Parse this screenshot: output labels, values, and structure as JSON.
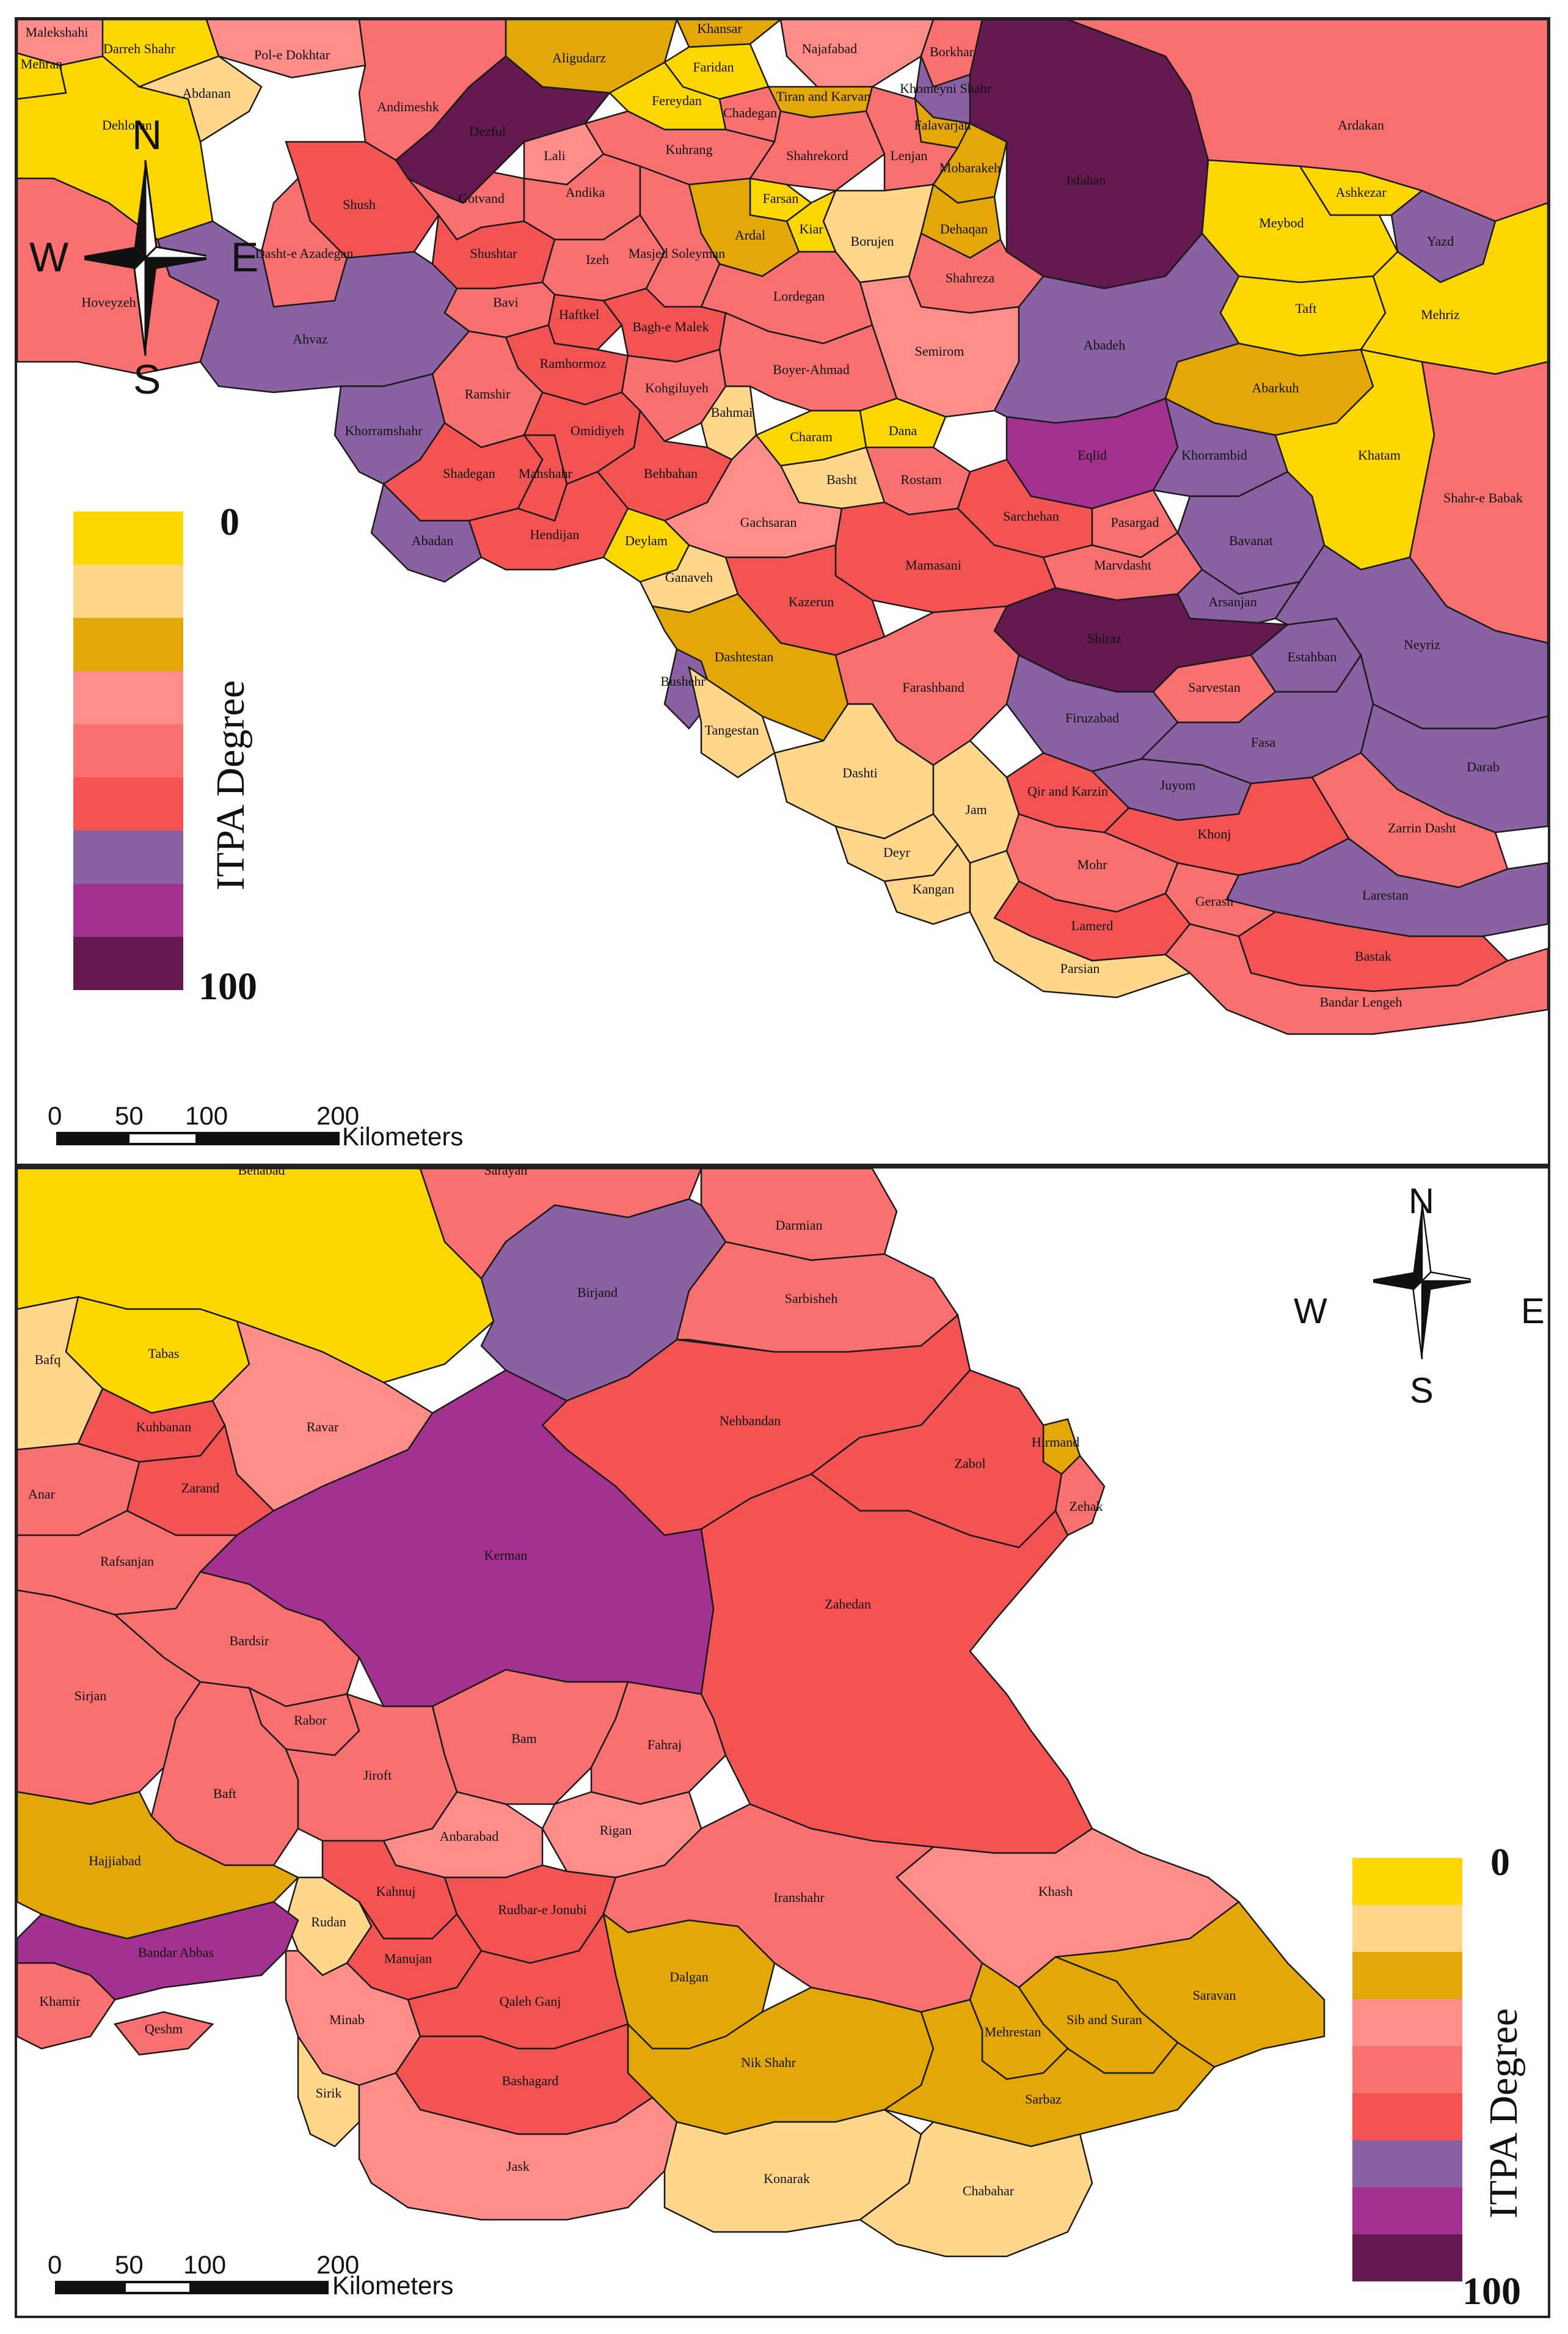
{
  "colors": {
    "c0": "#FFD700",
    "c1": "#FFD68A",
    "c2": "#E3A808",
    "c3": "#FF8D8A",
    "c4": "#F97070",
    "c5": "#F45354",
    "c6": "#8A62A3",
    "c7": "#A3318F",
    "c8": "#64194F"
  },
  "legend": {
    "title": "ITPA Degree",
    "min": "0",
    "max": "100",
    "classes": [
      "c0",
      "c1",
      "c2",
      "c3",
      "c4",
      "c5",
      "c6",
      "c7",
      "c8"
    ]
  },
  "compass": {
    "n": "N",
    "s": "S",
    "e": "E",
    "w": "W"
  },
  "scale": {
    "ticks": [
      "0",
      "50",
      "100",
      "200"
    ],
    "unit": "Kilometers"
  },
  "map_top": {
    "districts": [
      {
        "name": "Malekshahi",
        "c": "c3"
      },
      {
        "name": "Mehran",
        "c": "c0"
      },
      {
        "name": "Darreh Shahr",
        "c": "c0"
      },
      {
        "name": "Pol-e Dokhtar",
        "c": "c3"
      },
      {
        "name": "Dehloran",
        "c": "c0"
      },
      {
        "name": "Abdanan",
        "c": "c1"
      },
      {
        "name": "Aligudarz",
        "c": "c2"
      },
      {
        "name": "Khansar",
        "c": "c2"
      },
      {
        "name": "Faridan",
        "c": "c0"
      },
      {
        "name": "Najafabad",
        "c": "c3"
      },
      {
        "name": "Borkhar",
        "c": "c4"
      },
      {
        "name": "Fereydan",
        "c": "c0"
      },
      {
        "name": "Tiran and Karvan",
        "c": "c2"
      },
      {
        "name": "Chadegan",
        "c": "c4"
      },
      {
        "name": "Khomeyni Shahr",
        "c": "c6"
      },
      {
        "name": "Falavarjan",
        "c": "c2"
      },
      {
        "name": "Andimeshk",
        "c": "c4"
      },
      {
        "name": "Dezful",
        "c": "c8"
      },
      {
        "name": "Lali",
        "c": "c3"
      },
      {
        "name": "Kuhrang",
        "c": "c4"
      },
      {
        "name": "Shahrekord",
        "c": "c4"
      },
      {
        "name": "Lenjan",
        "c": "c4"
      },
      {
        "name": "Mobarakeh",
        "c": "c2"
      },
      {
        "name": "Isfahan",
        "c": "c8"
      },
      {
        "name": "Ardakan",
        "c": "c4"
      },
      {
        "name": "Ashkezar",
        "c": "c0"
      },
      {
        "name": "Gotvand",
        "c": "c4"
      },
      {
        "name": "Andika",
        "c": "c4"
      },
      {
        "name": "Farsan",
        "c": "c0"
      },
      {
        "name": "Borujen",
        "c": "c1"
      },
      {
        "name": "Dehaqan",
        "c": "c2"
      },
      {
        "name": "Kiar",
        "c": "c0"
      },
      {
        "name": "Ardal",
        "c": "c2"
      },
      {
        "name": "Meybod",
        "c": "c0"
      },
      {
        "name": "Yazd",
        "c": "c6"
      },
      {
        "name": "Shush",
        "c": "c5"
      },
      {
        "name": "Shushtar",
        "c": "c5"
      },
      {
        "name": "Izeh",
        "c": "c4"
      },
      {
        "name": "Masjed Soleyman",
        "c": "c4"
      },
      {
        "name": "Shahreza",
        "c": "c4"
      },
      {
        "name": "Dasht-e Azadegan",
        "c": "c4"
      },
      {
        "name": "Lordegan",
        "c": "c4"
      },
      {
        "name": "Taft",
        "c": "c0"
      },
      {
        "name": "Mehriz",
        "c": "c0"
      },
      {
        "name": "Hoveyzeh",
        "c": "c4"
      },
      {
        "name": "Bavi",
        "c": "c4"
      },
      {
        "name": "Haftkel",
        "c": "c5"
      },
      {
        "name": "Bagh-e Malek",
        "c": "c5"
      },
      {
        "name": "Semirom",
        "c": "c3"
      },
      {
        "name": "Abadeh",
        "c": "c6"
      },
      {
        "name": "Ahvaz",
        "c": "c6"
      },
      {
        "name": "Ramhormoz",
        "c": "c5"
      },
      {
        "name": "Ramshir",
        "c": "c4"
      },
      {
        "name": "Kohgiluyeh",
        "c": "c4"
      },
      {
        "name": "Bahmai",
        "c": "c1"
      },
      {
        "name": "Boyer-Ahmad",
        "c": "c4"
      },
      {
        "name": "Abarkuh",
        "c": "c2"
      },
      {
        "name": "Dana",
        "c": "c0"
      },
      {
        "name": "Khorramshahr",
        "c": "c6"
      },
      {
        "name": "Shadegan",
        "c": "c5"
      },
      {
        "name": "Mahshahr",
        "c": "c5"
      },
      {
        "name": "Omidiyeh",
        "c": "c5"
      },
      {
        "name": "Behbahan",
        "c": "c5"
      },
      {
        "name": "Charam",
        "c": "c0"
      },
      {
        "name": "Eqlid",
        "c": "c7"
      },
      {
        "name": "Khorrambid",
        "c": "c6"
      },
      {
        "name": "Khatam",
        "c": "c0"
      },
      {
        "name": "Basht",
        "c": "c1"
      },
      {
        "name": "Rostam",
        "c": "c4"
      },
      {
        "name": "Bavanat",
        "c": "c6"
      },
      {
        "name": "Shahr-e Babak",
        "c": "c4"
      },
      {
        "name": "Abadan",
        "c": "c6"
      },
      {
        "name": "Hendijan",
        "c": "c5"
      },
      {
        "name": "Gachsaran",
        "c": "c3"
      },
      {
        "name": "Sarchehan",
        "c": "c5"
      },
      {
        "name": "Pasargad",
        "c": "c4"
      },
      {
        "name": "Marvdasht",
        "c": "c4"
      },
      {
        "name": "Deylam",
        "c": "c0"
      },
      {
        "name": "Mamasani",
        "c": "c5"
      },
      {
        "name": "Arsanjan",
        "c": "c6"
      },
      {
        "name": "Ganaveh",
        "c": "c1"
      },
      {
        "name": "Kazerun",
        "c": "c5"
      },
      {
        "name": "Shiraz",
        "c": "c8"
      },
      {
        "name": "Sarvestan",
        "c": "c4"
      },
      {
        "name": "Estahban",
        "c": "c6"
      },
      {
        "name": "Neyriz",
        "c": "c6"
      },
      {
        "name": "Dashtestan",
        "c": "c2"
      },
      {
        "name": "Bushehr",
        "c": "c6"
      },
      {
        "name": "Tangestan",
        "c": "c1"
      },
      {
        "name": "Farashband",
        "c": "c4"
      },
      {
        "name": "Firuzabad",
        "c": "c6"
      },
      {
        "name": "Fasa",
        "c": "c6"
      },
      {
        "name": "Juyom",
        "c": "c6"
      },
      {
        "name": "Darab",
        "c": "c6"
      },
      {
        "name": "Dashti",
        "c": "c1"
      },
      {
        "name": "Zarrin Dasht",
        "c": "c4"
      },
      {
        "name": "Qir and Karzin",
        "c": "c5"
      },
      {
        "name": "Deyr",
        "c": "c1"
      },
      {
        "name": "Jam",
        "c": "c1"
      },
      {
        "name": "Khonj",
        "c": "c5"
      },
      {
        "name": "Larestan",
        "c": "c6"
      },
      {
        "name": "Gerash",
        "c": "c4"
      },
      {
        "name": "Kangan",
        "c": "c1"
      },
      {
        "name": "Mohr",
        "c": "c4"
      },
      {
        "name": "Lamerd",
        "c": "c5"
      },
      {
        "name": "Bastak",
        "c": "c5"
      },
      {
        "name": "Parsian",
        "c": "c1"
      },
      {
        "name": "Bandar Lengeh",
        "c": "c4"
      }
    ]
  },
  "map_bottom": {
    "districts": [
      {
        "name": "Behabad",
        "c": "c0"
      },
      {
        "name": "Sarayan",
        "c": "c4"
      },
      {
        "name": "Darmian",
        "c": "c4"
      },
      {
        "name": "Birjand",
        "c": "c6"
      },
      {
        "name": "Sarbisheh",
        "c": "c4"
      },
      {
        "name": "Tabas",
        "c": "c0"
      },
      {
        "name": "Bafq",
        "c": "c1"
      },
      {
        "name": "Nehbandan",
        "c": "c5"
      },
      {
        "name": "Ravar",
        "c": "c3"
      },
      {
        "name": "Kuhbanan",
        "c": "c5"
      },
      {
        "name": "Hirmand",
        "c": "c2"
      },
      {
        "name": "Zarand",
        "c": "c5"
      },
      {
        "name": "Zabol",
        "c": "c5"
      },
      {
        "name": "Zehak",
        "c": "c4"
      },
      {
        "name": "Anar",
        "c": "c4"
      },
      {
        "name": "Kerman",
        "c": "c7"
      },
      {
        "name": "Rafsanjan",
        "c": "c4"
      },
      {
        "name": "Zahedan",
        "c": "c5"
      },
      {
        "name": "Bardsir",
        "c": "c4"
      },
      {
        "name": "Sirjan",
        "c": "c4"
      },
      {
        "name": "Rabor",
        "c": "c4"
      },
      {
        "name": "Bam",
        "c": "c4"
      },
      {
        "name": "Fahraj",
        "c": "c4"
      },
      {
        "name": "Baft",
        "c": "c4"
      },
      {
        "name": "Jiroft",
        "c": "c4"
      },
      {
        "name": "Khash",
        "c": "c3"
      },
      {
        "name": "Anbarabad",
        "c": "c3"
      },
      {
        "name": "Rigan",
        "c": "c3"
      },
      {
        "name": "Hajjiabad",
        "c": "c2"
      },
      {
        "name": "Kahnuj",
        "c": "c5"
      },
      {
        "name": "Rudbar-e Jonubi",
        "c": "c5"
      },
      {
        "name": "Rudan",
        "c": "c1"
      },
      {
        "name": "Iranshahr",
        "c": "c4"
      },
      {
        "name": "Saravan",
        "c": "c2"
      },
      {
        "name": "Sib and Suran",
        "c": "c2"
      },
      {
        "name": "Bandar Abbas",
        "c": "c7"
      },
      {
        "name": "Manujan",
        "c": "c5"
      },
      {
        "name": "Dalgan",
        "c": "c2"
      },
      {
        "name": "Khamir",
        "c": "c4"
      },
      {
        "name": "Mehrestan",
        "c": "c2"
      },
      {
        "name": "Minab",
        "c": "c3"
      },
      {
        "name": "Qaleh Ganj",
        "c": "c5"
      },
      {
        "name": "Qeshm",
        "c": "c4"
      },
      {
        "name": "Sirik",
        "c": "c1"
      },
      {
        "name": "Nik Shahr",
        "c": "c2"
      },
      {
        "name": "Sarbaz",
        "c": "c2"
      },
      {
        "name": "Bashagard",
        "c": "c5"
      },
      {
        "name": "Jask",
        "c": "c3"
      },
      {
        "name": "Konarak",
        "c": "c1"
      },
      {
        "name": "Chabahar",
        "c": "c1"
      }
    ]
  }
}
